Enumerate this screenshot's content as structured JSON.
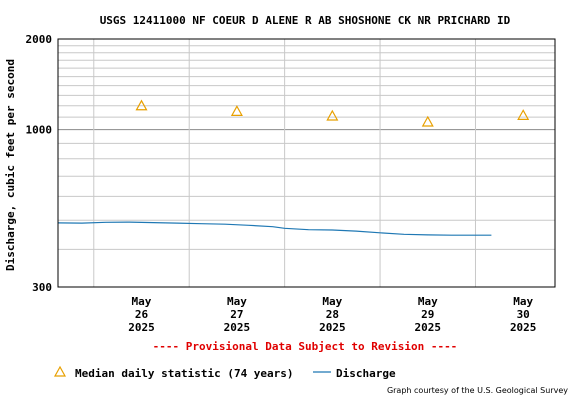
{
  "chart_data": {
    "type": "line",
    "title": "USGS 12411000 NF COEUR D ALENE R AB SHOSHONE CK NR PRICHARD ID",
    "ylabel": "Discharge, cubic feet per second",
    "xlabel": "",
    "yscale": "log",
    "ylim": [
      300,
      2000
    ],
    "ytick_labels": [
      "300",
      "1000",
      "2000"
    ],
    "ytick_values": [
      300,
      1000,
      2000
    ],
    "xlim": [
      "2025-05-25T15:00",
      "2025-05-30T20:00"
    ],
    "xticks": [
      {
        "date": "2025-05-26T12:00",
        "month": "May",
        "day": "26",
        "year": "2025"
      },
      {
        "date": "2025-05-27T12:00",
        "month": "May",
        "day": "27",
        "year": "2025"
      },
      {
        "date": "2025-05-28T12:00",
        "month": "May",
        "day": "28",
        "year": "2025"
      },
      {
        "date": "2025-05-29T12:00",
        "month": "May",
        "day": "29",
        "year": "2025"
      },
      {
        "date": "2025-05-30T12:00",
        "month": "May",
        "day": "30",
        "year": "2025"
      }
    ],
    "grid": true,
    "series": [
      {
        "name": "Median daily statistic (74 years)",
        "kind": "marker",
        "color": "#e8a000",
        "points": [
          {
            "x": "2025-05-26T12:00",
            "y": 1200
          },
          {
            "x": "2025-05-27T12:00",
            "y": 1150
          },
          {
            "x": "2025-05-28T12:00",
            "y": 1110
          },
          {
            "x": "2025-05-29T12:00",
            "y": 1060
          },
          {
            "x": "2025-05-30T12:00",
            "y": 1115
          }
        ]
      },
      {
        "name": "Discharge",
        "kind": "line",
        "color": "#1f78b4",
        "points": [
          {
            "x": "2025-05-25T15:00",
            "y": 490
          },
          {
            "x": "2025-05-25T21:00",
            "y": 489
          },
          {
            "x": "2025-05-26T03:00",
            "y": 492
          },
          {
            "x": "2025-05-26T09:00",
            "y": 493
          },
          {
            "x": "2025-05-26T15:00",
            "y": 491
          },
          {
            "x": "2025-05-26T21:00",
            "y": 489
          },
          {
            "x": "2025-05-27T03:00",
            "y": 487
          },
          {
            "x": "2025-05-27T09:00",
            "y": 485
          },
          {
            "x": "2025-05-27T15:00",
            "y": 481
          },
          {
            "x": "2025-05-27T21:00",
            "y": 476
          },
          {
            "x": "2025-05-28T00:00",
            "y": 470
          },
          {
            "x": "2025-05-28T06:00",
            "y": 465
          },
          {
            "x": "2025-05-28T12:00",
            "y": 464
          },
          {
            "x": "2025-05-28T18:00",
            "y": 460
          },
          {
            "x": "2025-05-29T00:00",
            "y": 454
          },
          {
            "x": "2025-05-29T06:00",
            "y": 449
          },
          {
            "x": "2025-05-29T12:00",
            "y": 447
          },
          {
            "x": "2025-05-29T18:00",
            "y": 446
          },
          {
            "x": "2025-05-29T23:00",
            "y": 446
          },
          {
            "x": "2025-05-30T04:00",
            "y": 446
          }
        ]
      }
    ],
    "legend": "bottom"
  },
  "provisional_note": "---- Provisional Data Subject to Revision ----",
  "credit": "Graph courtesy of the U.S. Geological Survey"
}
